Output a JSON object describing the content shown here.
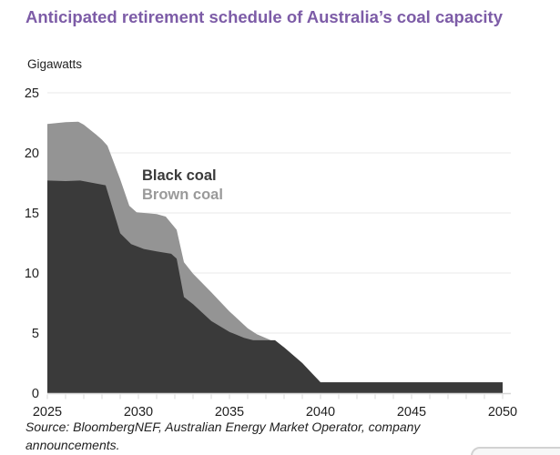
{
  "title": "Anticipated retirement schedule of Australia’s coal capacity",
  "unit_label": "Gigawatts",
  "legend": {
    "black_label": "Black coal",
    "brown_label": "Brown coal"
  },
  "source_note": "Source: BloombergNEF, Australian Energy Market Operator, company announcements.",
  "colors": {
    "title_purple": "#7d5ca7",
    "black_coal": "#3a3a3a",
    "brown_coal": "#949494",
    "legend_brown_text": "#9a9a9a",
    "gridline": "#e9e9e9",
    "axis_line": "#d6d6d6",
    "tick_mark": "#d9d9d9",
    "tick_text": "#1f1f1f",
    "background": "#ffffff"
  },
  "chart_data": {
    "type": "area",
    "stacked": true,
    "title": "Anticipated retirement schedule of Australia’s coal capacity",
    "xlabel": "",
    "ylabel": "Gigawatts",
    "x_range": [
      2025,
      2050
    ],
    "ylim": [
      0,
      25
    ],
    "x_tick_step_labeled": 5,
    "x_minor_tick_step": 1,
    "x_tick_labels": [
      "2025",
      "2030",
      "2035",
      "2040",
      "2045",
      "2050"
    ],
    "y_ticks": [
      0,
      5,
      10,
      15,
      20,
      25
    ],
    "y_tick_labels": [
      "0",
      "5",
      "10",
      "15",
      "20",
      "25"
    ],
    "grid": "horizontal",
    "legend_position": "inside-upper-middle",
    "series": [
      {
        "name": "Black coal",
        "color": "#3a3a3a",
        "points": [
          [
            2025.0,
            17.7
          ],
          [
            2026.0,
            17.65
          ],
          [
            2026.8,
            17.7
          ],
          [
            2027.5,
            17.5
          ],
          [
            2028.2,
            17.3
          ],
          [
            2029.0,
            13.3
          ],
          [
            2029.6,
            12.4
          ],
          [
            2030.3,
            12.0
          ],
          [
            2031.0,
            11.8
          ],
          [
            2031.8,
            11.6
          ],
          [
            2032.1,
            11.2
          ],
          [
            2032.5,
            8.0
          ],
          [
            2033.0,
            7.4
          ],
          [
            2034.0,
            6.0
          ],
          [
            2035.0,
            5.1
          ],
          [
            2035.8,
            4.6
          ],
          [
            2036.3,
            4.4
          ],
          [
            2037.5,
            4.4
          ],
          [
            2038.0,
            3.8
          ],
          [
            2039.0,
            2.5
          ],
          [
            2039.5,
            1.7
          ],
          [
            2040.0,
            0.9
          ],
          [
            2050.0,
            0.9
          ]
        ]
      },
      {
        "name": "Brown coal",
        "color": "#949494",
        "note": "points are stacked totals (black + brown); brown capacity = total minus black, reaching 0 around 2037",
        "points": [
          [
            2025.0,
            22.4
          ],
          [
            2026.0,
            22.55
          ],
          [
            2026.7,
            22.6
          ],
          [
            2027.0,
            22.35
          ],
          [
            2027.7,
            21.5
          ],
          [
            2028.0,
            21.1
          ],
          [
            2028.3,
            20.6
          ],
          [
            2029.0,
            17.8
          ],
          [
            2029.5,
            15.6
          ],
          [
            2029.9,
            15.05
          ],
          [
            2031.0,
            14.9
          ],
          [
            2031.5,
            14.7
          ],
          [
            2032.1,
            13.6
          ],
          [
            2032.5,
            10.9
          ],
          [
            2033.0,
            9.95
          ],
          [
            2034.0,
            8.4
          ],
          [
            2035.0,
            6.8
          ],
          [
            2036.0,
            5.4
          ],
          [
            2036.5,
            4.9
          ],
          [
            2037.2,
            4.45
          ],
          [
            2038.0,
            3.8
          ],
          [
            2039.0,
            2.5
          ],
          [
            2039.5,
            1.7
          ],
          [
            2040.0,
            0.9
          ],
          [
            2050.0,
            0.9
          ]
        ]
      }
    ]
  }
}
